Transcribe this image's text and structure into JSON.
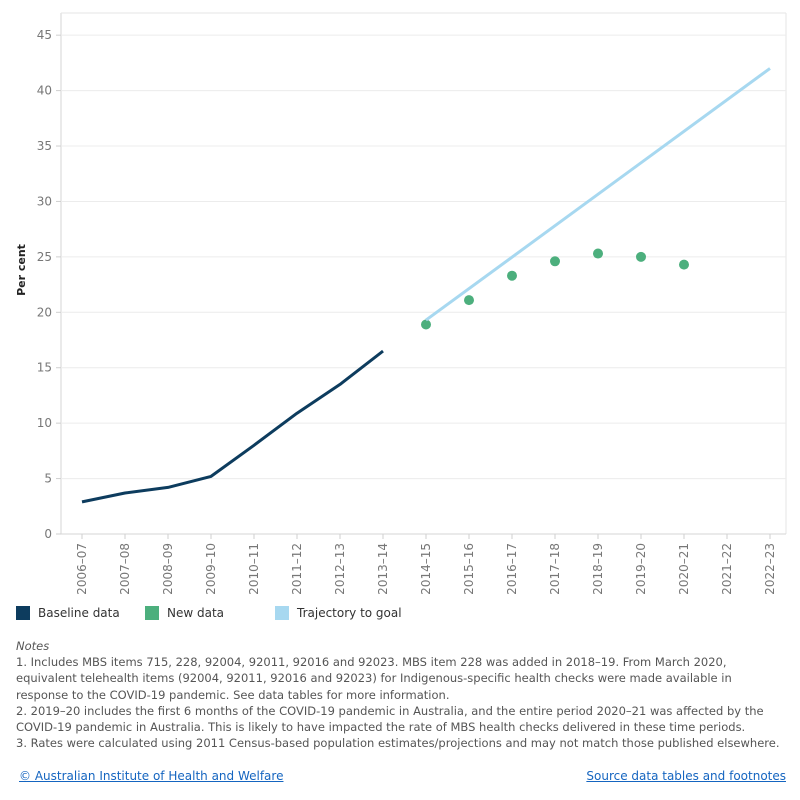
{
  "chart_data": {
    "type": "line",
    "ylabel": "Per cent",
    "ylim": [
      0,
      47
    ],
    "yticks": [
      0,
      5,
      10,
      15,
      20,
      25,
      30,
      35,
      40,
      45
    ],
    "categories": [
      "2006–07",
      "2007–08",
      "2008–09",
      "2009–10",
      "2010–11",
      "2011–12",
      "2012–13",
      "2013–14",
      "2014–15",
      "2015–16",
      "2016–17",
      "2017–18",
      "2018–19",
      "2019–20",
      "2020–21",
      "2021–22",
      "2022–23"
    ],
    "grid": true,
    "series": [
      {
        "name": "Baseline data",
        "kind": "line",
        "color": "#0d3c5e",
        "x": [
          "2006–07",
          "2007–08",
          "2008–09",
          "2009–10",
          "2010–11",
          "2011–12",
          "2012–13",
          "2013–14"
        ],
        "values": [
          2.9,
          3.7,
          4.2,
          5.2,
          8.0,
          10.9,
          13.5,
          16.5
        ]
      },
      {
        "name": "New data",
        "kind": "scatter",
        "color": "#4caf7d",
        "x": [
          "2014–15",
          "2015–16",
          "2016–17",
          "2017–18",
          "2018–19",
          "2019–20",
          "2020–21"
        ],
        "values": [
          18.9,
          21.1,
          23.3,
          24.6,
          25.3,
          25.0,
          24.3
        ]
      },
      {
        "name": "Trajectory to goal",
        "kind": "line",
        "color": "#a7d8f0",
        "x": [
          "2014–15",
          "2022–23"
        ],
        "values": [
          19.3,
          42.0
        ]
      }
    ],
    "legend_position": "bottom"
  },
  "legend": [
    {
      "label": "Baseline data",
      "color": "#0d3c5e"
    },
    {
      "label": "New data",
      "color": "#4caf7d"
    },
    {
      "label": "Trajectory to goal",
      "color": "#a7d8f0"
    }
  ],
  "notes": {
    "title": "Notes",
    "items": [
      "1. Includes MBS items 715, 228, 92004, 92011, 92016 and 92023. MBS item 228 was added in 2018–19. From March 2020, equivalent telehealth items (92004, 92011, 92016 and 92023) for Indigenous-specific health checks were made available in response to the COVID-19 pandemic. See data tables for more information.",
      "2. 2019–20 includes the first 6 months of the COVID-19 pandemic in Australia, and the entire period 2020–21 was affected by the COVID-19 pandemic in Australia. This is likely to have impacted the rate of MBS health checks delivered in these time periods.",
      "3. Rates were calculated using 2011 Census-based population estimates/projections and may not match those published elsewhere."
    ]
  },
  "footer": {
    "copyright": "© Australian Institute of Health and Welfare",
    "source_link": "Source data tables and footnotes"
  }
}
